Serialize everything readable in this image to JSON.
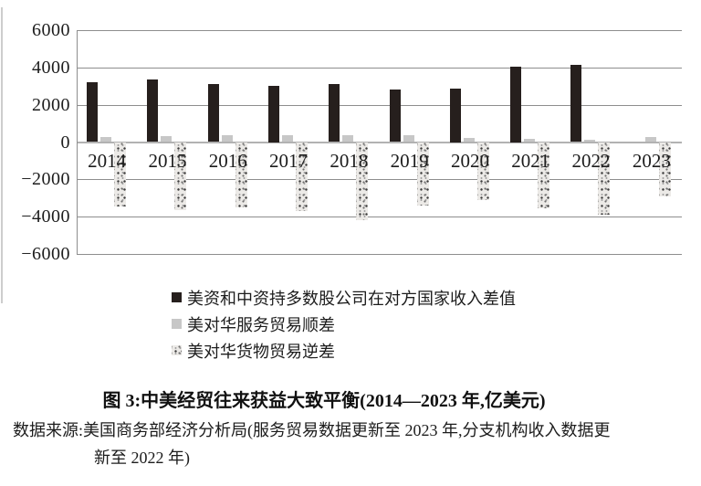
{
  "chart_data": {
    "type": "bar",
    "title": "图 3:中美经贸往来获益大致平衡(2014—2023 年,亿美元)",
    "source_note": {
      "line1": "数据来源:美国商务部经济分析局(服务贸易数据更新至 2023 年,分支机构收入数据更",
      "line2": "新至 2022 年)"
    },
    "categories": [
      "2014",
      "2015",
      "2016",
      "2017",
      "2018",
      "2019",
      "2020",
      "2021",
      "2022",
      "2023"
    ],
    "series": [
      {
        "name": "美资和中资持多数股公司在对方国家收入差值",
        "fill": "solid-dark",
        "color": "#261f1d",
        "values": [
          3200,
          3350,
          3100,
          3000,
          3100,
          2800,
          2850,
          4050,
          4150,
          null
        ]
      },
      {
        "name": "美对华服务贸易顺差",
        "fill": "solid-gray",
        "color": "#c7c7c7",
        "values": [
          250,
          330,
          360,
          380,
          390,
          380,
          210,
          160,
          130,
          260
        ]
      },
      {
        "name": "美对华货物贸易逆差",
        "fill": "speckled-pattern",
        "color": "#eceae7",
        "values": [
          -3450,
          -3650,
          -3500,
          -3700,
          -4200,
          -3400,
          -3100,
          -3550,
          -3900,
          -2900
        ]
      }
    ],
    "ylim": [
      -6000,
      6000
    ],
    "ytick_step": 2000,
    "ytick_labels": [
      "6000",
      "4000",
      "2000",
      "0",
      "−2000",
      "−4000",
      "−6000"
    ],
    "grid": true,
    "legend_position": "below-plot",
    "axis_color": "#8e8e8e"
  }
}
